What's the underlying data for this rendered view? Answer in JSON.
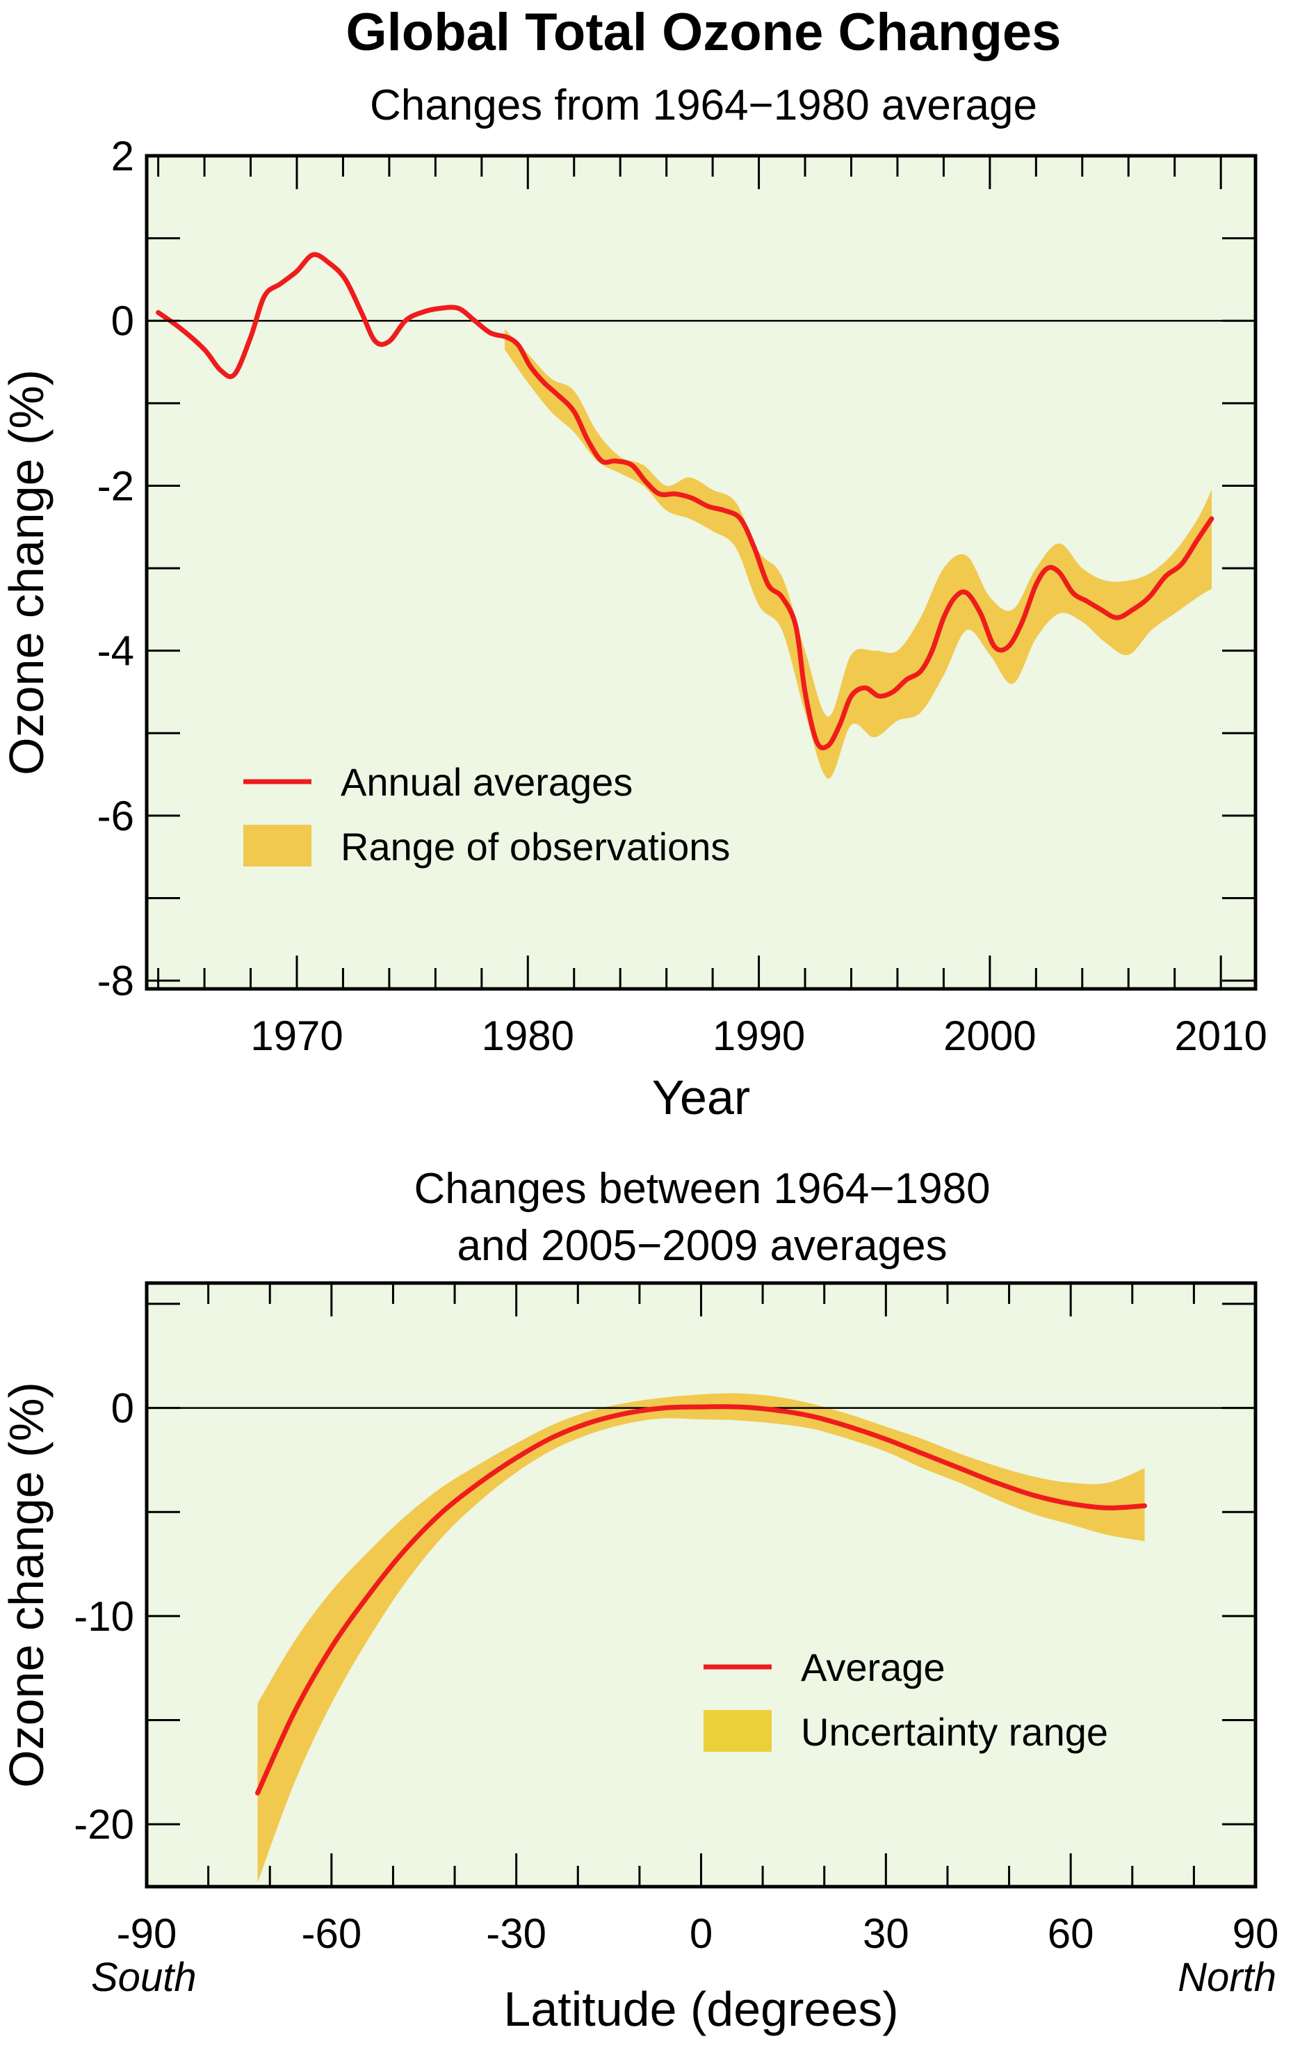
{
  "title": "Global Total Ozone Changes",
  "colors": {
    "plot_bg": "#eef6e4",
    "line": "#ee1c1c",
    "band": "#f0c94e",
    "band_legend2": "#ecd03a",
    "axis": "#000000"
  },
  "chart_data": [
    {
      "type": "line",
      "subtitle": "Changes from 1964−1980 average",
      "xlabel": "Year",
      "ylabel": "Ozone change (%)",
      "xlim": [
        1963.5,
        2011.5
      ],
      "ylim": [
        -8.1,
        2
      ],
      "xticks": [
        1970,
        1980,
        1990,
        2000,
        2010
      ],
      "xtick_labels": [
        "1970",
        "1980",
        "1990",
        "2000",
        "2010"
      ],
      "yticks": [
        2,
        0,
        -2,
        -4,
        -6,
        -8
      ],
      "ytick_labels": [
        "2",
        "0",
        "-2",
        "-4",
        "-6",
        "-8"
      ],
      "grid": false,
      "zero_line": true,
      "legend_position": "lower-left",
      "series": [
        {
          "name": "Annual averages",
          "x": [
            1964.0,
            1965.0,
            1966.0,
            1966.7,
            1967.3,
            1968.0,
            1968.6,
            1969.3,
            1970.0,
            1970.7,
            1971.4,
            1972.1,
            1972.8,
            1973.4,
            1974.0,
            1974.7,
            1975.4,
            1976.2,
            1977.0,
            1977.7,
            1978.4,
            1979.1,
            1979.6,
            1980.1,
            1980.7,
            1981.3,
            1982.0,
            1982.6,
            1983.2,
            1983.8,
            1984.5,
            1985.1,
            1985.7,
            1986.4,
            1987.1,
            1987.8,
            1988.5,
            1989.2,
            1989.8,
            1990.4,
            1991.0,
            1991.6,
            1992.0,
            1992.5,
            1993.0,
            1993.5,
            1994.0,
            1994.6,
            1995.2,
            1995.8,
            1996.4,
            1997.0,
            1997.5,
            1998.0,
            1998.5,
            1999.0,
            1999.6,
            2000.2,
            2000.8,
            2001.4,
            2002.0,
            2002.5,
            2003.0,
            2003.6,
            2004.2,
            2004.8,
            2005.5,
            2006.2,
            2006.9,
            2007.6,
            2008.3,
            2009.0,
            2009.6
          ],
          "y": [
            0.1,
            -0.1,
            -0.35,
            -0.6,
            -0.65,
            -0.2,
            0.3,
            0.45,
            0.6,
            0.8,
            0.7,
            0.5,
            0.1,
            -0.25,
            -0.25,
            0.0,
            0.1,
            0.15,
            0.15,
            0.0,
            -0.15,
            -0.2,
            -0.3,
            -0.55,
            -0.75,
            -0.9,
            -1.1,
            -1.45,
            -1.7,
            -1.7,
            -1.75,
            -1.95,
            -2.1,
            -2.1,
            -2.15,
            -2.25,
            -2.3,
            -2.4,
            -2.75,
            -3.2,
            -3.35,
            -3.7,
            -4.5,
            -5.1,
            -5.15,
            -4.9,
            -4.55,
            -4.45,
            -4.55,
            -4.5,
            -4.35,
            -4.25,
            -4.0,
            -3.6,
            -3.35,
            -3.3,
            -3.55,
            -3.95,
            -3.95,
            -3.65,
            -3.2,
            -3.0,
            -3.05,
            -3.3,
            -3.4,
            -3.5,
            -3.6,
            -3.5,
            -3.35,
            -3.1,
            -2.95,
            -2.65,
            -2.4
          ]
        },
        {
          "name": "Range of observations",
          "x": [
            1979.0,
            1980.0,
            1981.0,
            1982.0,
            1983.0,
            1984.0,
            1985.0,
            1986.0,
            1987.0,
            1988.0,
            1989.0,
            1990.0,
            1991.0,
            1992.0,
            1993.0,
            1994.0,
            1995.0,
            1996.0,
            1997.0,
            1998.0,
            1999.0,
            2000.0,
            2001.0,
            2002.0,
            2003.0,
            2004.0,
            2005.0,
            2006.0,
            2007.0,
            2008.0,
            2009.0,
            2009.6
          ],
          "upper": [
            -0.1,
            -0.4,
            -0.7,
            -0.85,
            -1.35,
            -1.65,
            -1.75,
            -2.0,
            -1.9,
            -2.05,
            -2.2,
            -2.8,
            -3.1,
            -4.0,
            -4.8,
            -4.05,
            -4.0,
            -4.0,
            -3.6,
            -3.0,
            -2.85,
            -3.35,
            -3.5,
            -3.0,
            -2.7,
            -3.0,
            -3.15,
            -3.15,
            -3.05,
            -2.8,
            -2.4,
            -2.05
          ],
          "lower": [
            -0.35,
            -0.75,
            -1.1,
            -1.35,
            -1.7,
            -1.85,
            -2.0,
            -2.3,
            -2.4,
            -2.55,
            -2.75,
            -3.45,
            -3.75,
            -4.75,
            -5.55,
            -4.9,
            -5.05,
            -4.85,
            -4.75,
            -4.3,
            -3.75,
            -4.05,
            -4.4,
            -3.85,
            -3.55,
            -3.65,
            -3.9,
            -4.05,
            -3.75,
            -3.55,
            -3.35,
            -3.25
          ]
        }
      ]
    },
    {
      "type": "line",
      "subtitle_lines": [
        "Changes between 1964−1980",
        "and 2005−2009 averages"
      ],
      "xlabel": "Latitude (degrees)",
      "ylabel": "Ozone change (%)",
      "xlim": [
        -90,
        90
      ],
      "ylim": [
        -23,
        6
      ],
      "xticks": [
        -90,
        -60,
        -30,
        0,
        30,
        60,
        90
      ],
      "xtick_labels": [
        "-90",
        "-60",
        "-30",
        "0",
        "30",
        "60",
        "90"
      ],
      "yticks": [
        0,
        -10,
        -20
      ],
      "ytick_labels": [
        "0",
        "-10",
        "-20"
      ],
      "x_side_labels": {
        "left": "South",
        "right": "North"
      },
      "grid": false,
      "zero_line": true,
      "legend_position": "lower-right",
      "series": [
        {
          "name": "Average",
          "x": [
            -72,
            -66,
            -60,
            -54,
            -48,
            -42,
            -36,
            -30,
            -24,
            -18,
            -12,
            -6,
            0,
            6,
            12,
            18,
            24,
            30,
            36,
            42,
            48,
            54,
            60,
            66,
            72
          ],
          "y": [
            -18.5,
            -14.6,
            -11.5,
            -9.0,
            -6.8,
            -5.0,
            -3.6,
            -2.4,
            -1.4,
            -0.7,
            -0.25,
            0.0,
            0.05,
            0.05,
            -0.1,
            -0.4,
            -0.9,
            -1.5,
            -2.2,
            -2.9,
            -3.6,
            -4.2,
            -4.6,
            -4.8,
            -4.7
          ]
        },
        {
          "name": "Uncertainty range",
          "x": [
            -72,
            -66,
            -60,
            -54,
            -48,
            -42,
            -36,
            -30,
            -24,
            -18,
            -12,
            -6,
            0,
            6,
            12,
            18,
            24,
            30,
            36,
            42,
            48,
            54,
            60,
            66,
            72
          ],
          "upper": [
            -14.2,
            -11.2,
            -8.8,
            -6.9,
            -5.2,
            -3.8,
            -2.7,
            -1.7,
            -0.8,
            -0.15,
            0.25,
            0.5,
            0.65,
            0.7,
            0.55,
            0.2,
            -0.3,
            -0.9,
            -1.5,
            -2.2,
            -2.8,
            -3.3,
            -3.6,
            -3.6,
            -2.9
          ],
          "lower": [
            -22.8,
            -18.0,
            -14.2,
            -11.1,
            -8.4,
            -6.2,
            -4.5,
            -3.1,
            -2.0,
            -1.25,
            -0.75,
            -0.5,
            -0.55,
            -0.6,
            -0.75,
            -1.0,
            -1.5,
            -2.1,
            -2.9,
            -3.6,
            -4.4,
            -5.1,
            -5.6,
            -6.1,
            -6.4
          ]
        }
      ]
    }
  ]
}
